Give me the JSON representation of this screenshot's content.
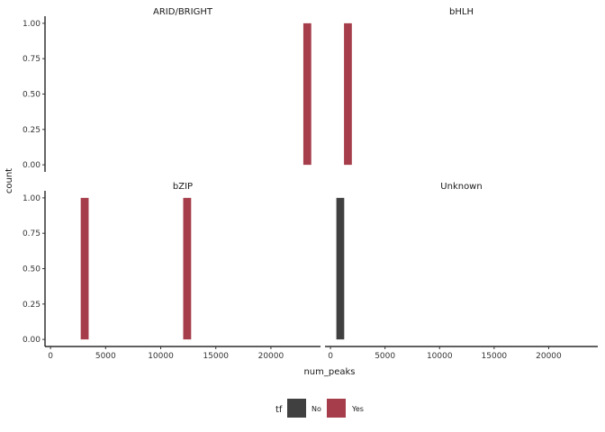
{
  "chart_data": {
    "type": "bar",
    "xlabel": "num_peaks",
    "ylabel": "count",
    "x_ticks": [
      0,
      5000,
      10000,
      15000,
      20000
    ],
    "x_tick_labels": [
      "0",
      "5000",
      "10000",
      "15000",
      "20000"
    ],
    "xlim": [
      -500,
      24500
    ],
    "y_ticks": [
      0,
      0.25,
      0.5,
      0.75,
      1
    ],
    "y_tick_labels": [
      "0.00",
      "0.25",
      "0.50",
      "0.75",
      "1.00"
    ],
    "ylim": [
      -0.05,
      1.05
    ],
    "bin_width": 720,
    "grid": false,
    "legend": {
      "title": "tf",
      "position": "bottom",
      "entries": [
        {
          "label": "No",
          "color": "#404040"
        },
        {
          "label": "Yes",
          "color": "#a63d4a"
        }
      ]
    },
    "panels": [
      {
        "title": "ARID/BRIGHT",
        "bars": [
          {
            "x": 23300,
            "count": 1,
            "tf": "Yes"
          }
        ]
      },
      {
        "title": "bHLH",
        "bars": [
          {
            "x": 1600,
            "count": 1,
            "tf": "Yes"
          }
        ]
      },
      {
        "title": "bZIP",
        "bars": [
          {
            "x": 3100,
            "count": 1,
            "tf": "Yes"
          },
          {
            "x": 12400,
            "count": 1,
            "tf": "Yes"
          }
        ]
      },
      {
        "title": "Unknown",
        "bars": [
          {
            "x": 900,
            "count": 1,
            "tf": "No"
          }
        ]
      }
    ]
  }
}
